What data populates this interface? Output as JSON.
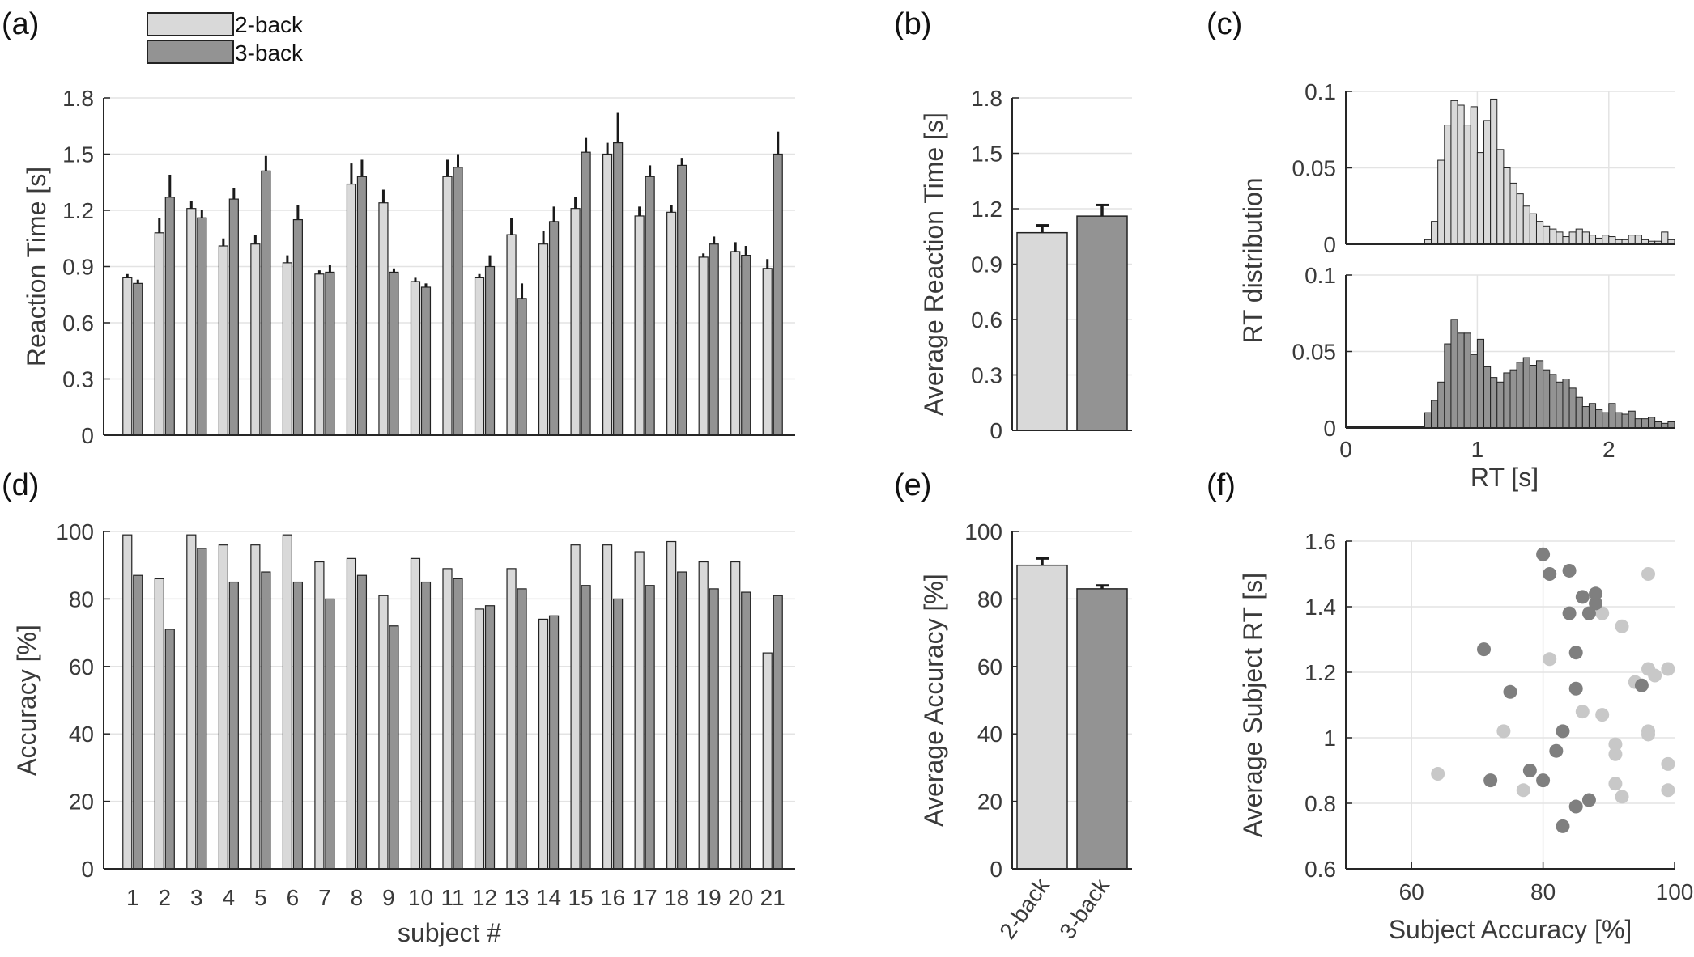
{
  "colors": {
    "two_back": "#d9d9d9",
    "three_back": "#939393",
    "grid": "#e3e3e3",
    "axis": "#262626",
    "err": "#1a1a1a",
    "scatter_two": "#c8c8c8",
    "scatter_three": "#7f7f7f"
  },
  "legend": {
    "entries": [
      "2-back",
      "3-back"
    ]
  },
  "panel_labels": {
    "a": "(a)",
    "b": "(b)",
    "c": "(c)",
    "d": "(d)",
    "e": "(e)",
    "f": "(f)"
  },
  "chart_data": [
    {
      "id": "a",
      "type": "bar",
      "ylabel": "Reaction Time [s]",
      "ylim": [
        0,
        1.8
      ],
      "yticks": [
        "0",
        "0.3",
        "0.6",
        "0.9",
        "1.2",
        "1.5",
        "1.8"
      ],
      "yticks_values": [
        0,
        0.3,
        0.6,
        0.9,
        1.2,
        1.5,
        1.8
      ],
      "grid": true,
      "categories": [
        "1",
        "2",
        "3",
        "4",
        "5",
        "6",
        "7",
        "8",
        "9",
        "10",
        "11",
        "12",
        "13",
        "14",
        "15",
        "16",
        "17",
        "18",
        "19",
        "20",
        "21"
      ],
      "series": [
        {
          "name": "2-back",
          "values": [
            0.84,
            1.08,
            1.21,
            1.01,
            1.02,
            0.92,
            0.86,
            1.34,
            1.24,
            0.82,
            1.38,
            0.84,
            1.07,
            1.02,
            1.21,
            1.5,
            1.17,
            1.19,
            0.95,
            0.98,
            0.89
          ],
          "errors": [
            0.02,
            0.08,
            0.04,
            0.04,
            0.05,
            0.04,
            0.02,
            0.11,
            0.07,
            0.02,
            0.09,
            0.02,
            0.09,
            0.07,
            0.06,
            0.06,
            0.05,
            0.04,
            0.02,
            0.05,
            0.05
          ]
        },
        {
          "name": "3-back",
          "values": [
            0.81,
            1.27,
            1.16,
            1.26,
            1.41,
            1.15,
            0.87,
            1.38,
            0.87,
            0.79,
            1.43,
            0.9,
            0.73,
            1.14,
            1.51,
            1.56,
            1.38,
            1.44,
            1.02,
            0.96,
            1.5
          ],
          "errors": [
            0.02,
            0.12,
            0.04,
            0.06,
            0.08,
            0.08,
            0.04,
            0.09,
            0.02,
            0.02,
            0.07,
            0.06,
            0.08,
            0.08,
            0.08,
            0.16,
            0.06,
            0.04,
            0.04,
            0.05,
            0.12
          ]
        }
      ]
    },
    {
      "id": "b",
      "type": "bar",
      "ylabel": "Average Reaction Time [s]",
      "ylim": [
        0,
        1.8
      ],
      "yticks": [
        "0",
        "0.3",
        "0.6",
        "0.9",
        "1.2",
        "1.5",
        "1.8"
      ],
      "yticks_values": [
        0,
        0.3,
        0.6,
        0.9,
        1.2,
        1.5,
        1.8
      ],
      "grid": true,
      "categories": [
        "2-back",
        "3-back"
      ],
      "values": [
        1.07,
        1.16
      ],
      "errors": [
        0.04,
        0.06
      ]
    },
    {
      "id": "c",
      "type": "histogram",
      "ylabel": "RT distribution",
      "xlabel": "RT [s]",
      "xlim": [
        0,
        2.5
      ],
      "xticks": [
        "0",
        "1",
        "2"
      ],
      "xticks_values": [
        0,
        1,
        2
      ],
      "ylim": [
        0,
        0.1
      ],
      "yticks": [
        "0",
        "0.05",
        "0.1"
      ],
      "yticks_values": [
        0,
        0.05,
        0.1
      ],
      "grid": true,
      "bin_start": 0.6,
      "bin_width": 0.05,
      "series": [
        {
          "name": "2-back",
          "values": [
            0.003,
            0.015,
            0.055,
            0.078,
            0.094,
            0.091,
            0.078,
            0.09,
            0.06,
            0.081,
            0.095,
            0.062,
            0.05,
            0.04,
            0.033,
            0.025,
            0.02,
            0.015,
            0.012,
            0.01,
            0.008,
            0.005,
            0.008,
            0.01,
            0.008,
            0.006,
            0.004,
            0.006,
            0.005,
            0.003,
            0.003,
            0.006,
            0.006,
            0.003,
            0.002,
            0.002,
            0.008,
            0.003
          ]
        },
        {
          "name": "3-back",
          "values": [
            0.01,
            0.018,
            0.03,
            0.055,
            0.071,
            0.062,
            0.062,
            0.048,
            0.058,
            0.04,
            0.033,
            0.03,
            0.036,
            0.038,
            0.043,
            0.046,
            0.041,
            0.044,
            0.038,
            0.035,
            0.03,
            0.032,
            0.026,
            0.02,
            0.014,
            0.016,
            0.012,
            0.01,
            0.016,
            0.01,
            0.009,
            0.011,
            0.006,
            0.006,
            0.007,
            0.004,
            0.003,
            0.004
          ]
        }
      ]
    },
    {
      "id": "d",
      "type": "bar",
      "ylabel": "Accuracy [%]",
      "xlabel": "subject #",
      "ylim": [
        0,
        100
      ],
      "yticks": [
        "0",
        "20",
        "40",
        "60",
        "80",
        "100"
      ],
      "yticks_values": [
        0,
        20,
        40,
        60,
        80,
        100
      ],
      "grid": true,
      "categories": [
        "1",
        "2",
        "3",
        "4",
        "5",
        "6",
        "7",
        "8",
        "9",
        "10",
        "11",
        "12",
        "13",
        "14",
        "15",
        "16",
        "17",
        "18",
        "19",
        "20",
        "21"
      ],
      "series": [
        {
          "name": "2-back",
          "values": [
            99,
            86,
            99,
            96,
            96,
            99,
            91,
            92,
            81,
            92,
            89,
            77,
            89,
            74,
            96,
            96,
            94,
            97,
            91,
            91,
            64
          ]
        },
        {
          "name": "3-back",
          "values": [
            87,
            71,
            95,
            85,
            88,
            85,
            80,
            87,
            72,
            85,
            86,
            78,
            83,
            75,
            84,
            80,
            84,
            88,
            83,
            82,
            81
          ]
        }
      ]
    },
    {
      "id": "e",
      "type": "bar",
      "ylabel": "Average Accuracy [%]",
      "ylim": [
        0,
        100
      ],
      "yticks": [
        "0",
        "20",
        "40",
        "60",
        "80",
        "100"
      ],
      "yticks_values": [
        0,
        20,
        40,
        60,
        80,
        100
      ],
      "grid": true,
      "categories": [
        "2-back",
        "3-back"
      ],
      "values": [
        90,
        83
      ],
      "errors": [
        2,
        1
      ]
    },
    {
      "id": "f",
      "type": "scatter",
      "xlabel": "Subject Accuracy [%]",
      "ylabel": "Average Subject RT [s]",
      "xlim": [
        50,
        100
      ],
      "xticks": [
        "60",
        "80",
        "100"
      ],
      "xticks_values": [
        60,
        80,
        100
      ],
      "ylim": [
        0.6,
        1.6
      ],
      "yticks": [
        "0.6",
        "0.8",
        "1",
        "1.2",
        "1.4",
        "1.6"
      ],
      "yticks_values": [
        0.6,
        0.8,
        1.0,
        1.2,
        1.4,
        1.6
      ],
      "grid": true,
      "series": [
        {
          "name": "2-back",
          "x": [
            99,
            86,
            99,
            96,
            96,
            99,
            91,
            92,
            81,
            92,
            89,
            77,
            89,
            74,
            96,
            96,
            94,
            97,
            91,
            91,
            64
          ],
          "y": [
            0.84,
            1.08,
            1.21,
            1.01,
            1.02,
            0.92,
            0.86,
            1.34,
            1.24,
            0.82,
            1.38,
            0.84,
            1.07,
            1.02,
            1.21,
            1.5,
            1.17,
            1.19,
            0.95,
            0.98,
            0.89
          ]
        },
        {
          "name": "3-back",
          "x": [
            87,
            71,
            95,
            85,
            88,
            85,
            80,
            87,
            72,
            85,
            86,
            78,
            83,
            75,
            84,
            80,
            84,
            88,
            83,
            82,
            81
          ],
          "y": [
            0.81,
            1.27,
            1.16,
            1.26,
            1.41,
            1.15,
            0.87,
            1.38,
            0.87,
            0.79,
            1.43,
            0.9,
            0.73,
            1.14,
            1.51,
            1.56,
            1.38,
            1.44,
            1.02,
            0.96,
            1.5
          ]
        }
      ]
    }
  ]
}
